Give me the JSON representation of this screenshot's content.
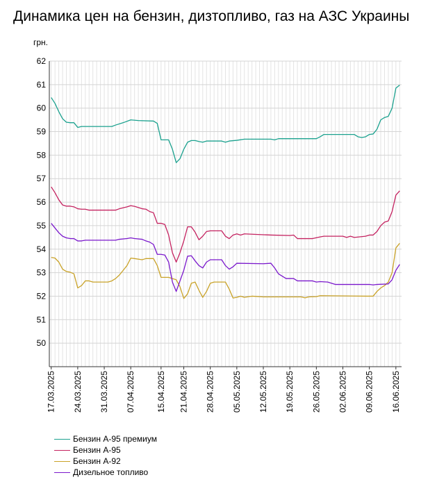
{
  "chart_data": {
    "type": "line",
    "title": "Динамика цен на бензин, дизтопливо, газ на АЗС Украины",
    "ylabel": "грн.",
    "ylim": [
      49,
      62
    ],
    "yticks": [
      50,
      51,
      52,
      53,
      54,
      55,
      56,
      57,
      58,
      59,
      60,
      61,
      62
    ],
    "grid": true,
    "legend_position": "bottom-left",
    "x_start": "2025-03-17",
    "x_end": "2025-06-17",
    "xticks": [
      "17.03.2025",
      "24.03.2025",
      "31.03.2025",
      "07.04.2025",
      "15.04.2025",
      "21.04.2025",
      "28.04.2025",
      "05.05.2025",
      "12.05.2025",
      "19.05.2025",
      "26.05.2025",
      "02.06.2025",
      "09.06.2025",
      "16.06.2025"
    ],
    "xtick_dates": [
      "2025-03-17",
      "2025-03-24",
      "2025-03-31",
      "2025-04-07",
      "2025-04-15",
      "2025-04-21",
      "2025-04-28",
      "2025-05-05",
      "2025-05-12",
      "2025-05-19",
      "2025-05-26",
      "2025-06-02",
      "2025-06-09",
      "2025-06-16"
    ],
    "series": [
      {
        "name": "Бензин А-95 премиум",
        "color": "#1aa18e",
        "points": [
          [
            "2025-03-17",
            60.45
          ],
          [
            "2025-03-18",
            60.2
          ],
          [
            "2025-03-19",
            59.85
          ],
          [
            "2025-03-20",
            59.55
          ],
          [
            "2025-03-21",
            59.4
          ],
          [
            "2025-03-22",
            59.38
          ],
          [
            "2025-03-23",
            59.38
          ],
          [
            "2025-03-24",
            59.18
          ],
          [
            "2025-03-25",
            59.22
          ],
          [
            "2025-03-27",
            59.22
          ],
          [
            "2025-04-02",
            59.22
          ],
          [
            "2025-04-03",
            59.28
          ],
          [
            "2025-04-05",
            59.38
          ],
          [
            "2025-04-07",
            59.5
          ],
          [
            "2025-04-09",
            59.47
          ],
          [
            "2025-04-13",
            59.45
          ],
          [
            "2025-04-14",
            59.35
          ],
          [
            "2025-04-15",
            58.65
          ],
          [
            "2025-04-17",
            58.65
          ],
          [
            "2025-04-18",
            58.25
          ],
          [
            "2025-04-19",
            57.68
          ],
          [
            "2025-04-20",
            57.85
          ],
          [
            "2025-04-21",
            58.25
          ],
          [
            "2025-04-22",
            58.55
          ],
          [
            "2025-04-23",
            58.62
          ],
          [
            "2025-04-24",
            58.62
          ],
          [
            "2025-04-25",
            58.58
          ],
          [
            "2025-04-26",
            58.55
          ],
          [
            "2025-04-27",
            58.6
          ],
          [
            "2025-05-01",
            58.6
          ],
          [
            "2025-05-02",
            58.55
          ],
          [
            "2025-05-03",
            58.6
          ],
          [
            "2025-05-05",
            58.63
          ],
          [
            "2025-05-07",
            58.68
          ],
          [
            "2025-05-14",
            58.68
          ],
          [
            "2025-05-15",
            58.65
          ],
          [
            "2025-05-16",
            58.7
          ],
          [
            "2025-05-26",
            58.7
          ],
          [
            "2025-05-27",
            58.78
          ],
          [
            "2025-05-28",
            58.88
          ],
          [
            "2025-06-05",
            58.88
          ],
          [
            "2025-06-06",
            58.78
          ],
          [
            "2025-06-07",
            58.75
          ],
          [
            "2025-06-08",
            58.78
          ],
          [
            "2025-06-09",
            58.88
          ],
          [
            "2025-06-10",
            58.9
          ],
          [
            "2025-06-11",
            59.1
          ],
          [
            "2025-06-12",
            59.5
          ],
          [
            "2025-06-13",
            59.6
          ],
          [
            "2025-06-14",
            59.65
          ],
          [
            "2025-06-15",
            60.0
          ],
          [
            "2025-06-16",
            60.85
          ],
          [
            "2025-06-17",
            60.98
          ]
        ]
      },
      {
        "name": "Бензин А-95",
        "color": "#c4215f",
        "points": [
          [
            "2025-03-17",
            56.65
          ],
          [
            "2025-03-18",
            56.4
          ],
          [
            "2025-03-19",
            56.1
          ],
          [
            "2025-03-20",
            55.88
          ],
          [
            "2025-03-21",
            55.83
          ],
          [
            "2025-03-22",
            55.83
          ],
          [
            "2025-03-23",
            55.8
          ],
          [
            "2025-03-24",
            55.72
          ],
          [
            "2025-03-25",
            55.7
          ],
          [
            "2025-03-26",
            55.7
          ],
          [
            "2025-03-27",
            55.66
          ],
          [
            "2025-04-03",
            55.66
          ],
          [
            "2025-04-04",
            55.72
          ],
          [
            "2025-04-06",
            55.8
          ],
          [
            "2025-04-07",
            55.85
          ],
          [
            "2025-04-08",
            55.82
          ],
          [
            "2025-04-10",
            55.72
          ],
          [
            "2025-04-11",
            55.7
          ],
          [
            "2025-04-12",
            55.6
          ],
          [
            "2025-04-13",
            55.55
          ],
          [
            "2025-04-14",
            55.1
          ],
          [
            "2025-04-15",
            55.1
          ],
          [
            "2025-04-16",
            55.05
          ],
          [
            "2025-04-17",
            54.6
          ],
          [
            "2025-04-18",
            53.85
          ],
          [
            "2025-04-19",
            53.45
          ],
          [
            "2025-04-20",
            53.85
          ],
          [
            "2025-04-21",
            54.35
          ],
          [
            "2025-04-22",
            54.95
          ],
          [
            "2025-04-23",
            54.95
          ],
          [
            "2025-04-24",
            54.72
          ],
          [
            "2025-04-25",
            54.4
          ],
          [
            "2025-04-26",
            54.55
          ],
          [
            "2025-04-27",
            54.75
          ],
          [
            "2025-04-28",
            54.78
          ],
          [
            "2025-05-01",
            54.78
          ],
          [
            "2025-05-02",
            54.55
          ],
          [
            "2025-05-03",
            54.45
          ],
          [
            "2025-05-04",
            54.6
          ],
          [
            "2025-05-05",
            54.65
          ],
          [
            "2025-05-06",
            54.6
          ],
          [
            "2025-05-07",
            54.65
          ],
          [
            "2025-05-14",
            54.6
          ],
          [
            "2025-05-19",
            54.58
          ],
          [
            "2025-05-20",
            54.6
          ],
          [
            "2025-05-21",
            54.45
          ],
          [
            "2025-05-25",
            54.45
          ],
          [
            "2025-05-27",
            54.52
          ],
          [
            "2025-05-28",
            54.55
          ],
          [
            "2025-06-02",
            54.55
          ],
          [
            "2025-06-03",
            54.5
          ],
          [
            "2025-06-04",
            54.55
          ],
          [
            "2025-06-05",
            54.5
          ],
          [
            "2025-06-08",
            54.55
          ],
          [
            "2025-06-09",
            54.6
          ],
          [
            "2025-06-10",
            54.6
          ],
          [
            "2025-06-11",
            54.75
          ],
          [
            "2025-06-12",
            55.0
          ],
          [
            "2025-06-13",
            55.15
          ],
          [
            "2025-06-14",
            55.2
          ],
          [
            "2025-06-15",
            55.6
          ],
          [
            "2025-06-16",
            56.3
          ],
          [
            "2025-06-17",
            56.48
          ]
        ]
      },
      {
        "name": "Бензин А-92",
        "color": "#c9a227",
        "points": [
          [
            "2025-03-17",
            53.65
          ],
          [
            "2025-03-18",
            53.62
          ],
          [
            "2025-03-19",
            53.45
          ],
          [
            "2025-03-20",
            53.15
          ],
          [
            "2025-03-21",
            53.05
          ],
          [
            "2025-03-22",
            53.02
          ],
          [
            "2025-03-23",
            52.95
          ],
          [
            "2025-03-24",
            52.35
          ],
          [
            "2025-03-25",
            52.45
          ],
          [
            "2025-03-26",
            52.65
          ],
          [
            "2025-03-27",
            52.65
          ],
          [
            "2025-03-28",
            52.6
          ],
          [
            "2025-04-01",
            52.6
          ],
          [
            "2025-04-02",
            52.65
          ],
          [
            "2025-04-03",
            52.75
          ],
          [
            "2025-04-04",
            52.9
          ],
          [
            "2025-04-05",
            53.1
          ],
          [
            "2025-04-06",
            53.3
          ],
          [
            "2025-04-07",
            53.62
          ],
          [
            "2025-04-08",
            53.6
          ],
          [
            "2025-04-10",
            53.55
          ],
          [
            "2025-04-11",
            53.6
          ],
          [
            "2025-04-13",
            53.6
          ],
          [
            "2025-04-14",
            53.3
          ],
          [
            "2025-04-15",
            52.8
          ],
          [
            "2025-04-17",
            52.8
          ],
          [
            "2025-04-18",
            52.75
          ],
          [
            "2025-04-19",
            52.7
          ],
          [
            "2025-04-20",
            52.4
          ],
          [
            "2025-04-21",
            51.9
          ],
          [
            "2025-04-22",
            52.1
          ],
          [
            "2025-04-23",
            52.55
          ],
          [
            "2025-04-24",
            52.6
          ],
          [
            "2025-04-25",
            52.25
          ],
          [
            "2025-04-26",
            51.95
          ],
          [
            "2025-04-27",
            52.2
          ],
          [
            "2025-04-28",
            52.55
          ],
          [
            "2025-04-29",
            52.6
          ],
          [
            "2025-05-02",
            52.6
          ],
          [
            "2025-05-03",
            52.3
          ],
          [
            "2025-05-04",
            51.92
          ],
          [
            "2025-05-05",
            51.95
          ],
          [
            "2025-05-06",
            52.0
          ],
          [
            "2025-05-07",
            51.95
          ],
          [
            "2025-05-09",
            52.0
          ],
          [
            "2025-05-12",
            51.97
          ],
          [
            "2025-05-22",
            51.97
          ],
          [
            "2025-05-23",
            51.93
          ],
          [
            "2025-05-24",
            51.97
          ],
          [
            "2025-05-26",
            51.98
          ],
          [
            "2025-05-27",
            52.02
          ],
          [
            "2025-06-08",
            52.0
          ],
          [
            "2025-06-10",
            52.0
          ],
          [
            "2025-06-11",
            52.2
          ],
          [
            "2025-06-12",
            52.35
          ],
          [
            "2025-06-13",
            52.45
          ],
          [
            "2025-06-14",
            52.6
          ],
          [
            "2025-06-15",
            53.0
          ],
          [
            "2025-06-16",
            54.05
          ],
          [
            "2025-06-17",
            54.25
          ]
        ]
      },
      {
        "name": "Дизельное топливо",
        "color": "#7a17cc",
        "points": [
          [
            "2025-03-17",
            55.1
          ],
          [
            "2025-03-18",
            54.9
          ],
          [
            "2025-03-19",
            54.7
          ],
          [
            "2025-03-20",
            54.55
          ],
          [
            "2025-03-21",
            54.48
          ],
          [
            "2025-03-22",
            54.45
          ],
          [
            "2025-03-23",
            54.45
          ],
          [
            "2025-03-24",
            54.35
          ],
          [
            "2025-03-25",
            54.35
          ],
          [
            "2025-03-26",
            54.38
          ],
          [
            "2025-04-03",
            54.38
          ],
          [
            "2025-04-04",
            54.42
          ],
          [
            "2025-04-06",
            54.45
          ],
          [
            "2025-04-07",
            54.48
          ],
          [
            "2025-04-08",
            54.45
          ],
          [
            "2025-04-10",
            54.42
          ],
          [
            "2025-04-11",
            54.35
          ],
          [
            "2025-04-12",
            54.3
          ],
          [
            "2025-04-13",
            54.2
          ],
          [
            "2025-04-14",
            53.78
          ],
          [
            "2025-04-15",
            53.78
          ],
          [
            "2025-04-16",
            53.75
          ],
          [
            "2025-04-17",
            53.45
          ],
          [
            "2025-04-18",
            52.6
          ],
          [
            "2025-04-19",
            52.2
          ],
          [
            "2025-04-20",
            52.65
          ],
          [
            "2025-04-21",
            53.1
          ],
          [
            "2025-04-22",
            53.7
          ],
          [
            "2025-04-23",
            53.72
          ],
          [
            "2025-04-24",
            53.5
          ],
          [
            "2025-04-25",
            53.3
          ],
          [
            "2025-04-26",
            53.2
          ],
          [
            "2025-04-27",
            53.45
          ],
          [
            "2025-04-28",
            53.55
          ],
          [
            "2025-05-01",
            53.55
          ],
          [
            "2025-05-02",
            53.3
          ],
          [
            "2025-05-03",
            53.15
          ],
          [
            "2025-05-04",
            53.25
          ],
          [
            "2025-05-05",
            53.4
          ],
          [
            "2025-05-12",
            53.38
          ],
          [
            "2025-05-14",
            53.4
          ],
          [
            "2025-05-15",
            53.2
          ],
          [
            "2025-05-16",
            52.95
          ],
          [
            "2025-05-17",
            52.85
          ],
          [
            "2025-05-18",
            52.75
          ],
          [
            "2025-05-20",
            52.75
          ],
          [
            "2025-05-21",
            52.65
          ],
          [
            "2025-05-25",
            52.65
          ],
          [
            "2025-05-26",
            52.6
          ],
          [
            "2025-05-27",
            52.62
          ],
          [
            "2025-05-29",
            52.6
          ],
          [
            "2025-05-30",
            52.55
          ],
          [
            "2025-05-31",
            52.5
          ],
          [
            "2025-06-09",
            52.5
          ],
          [
            "2025-06-10",
            52.48
          ],
          [
            "2025-06-11",
            52.5
          ],
          [
            "2025-06-14",
            52.52
          ],
          [
            "2025-06-15",
            52.7
          ],
          [
            "2025-06-16",
            53.1
          ],
          [
            "2025-06-17",
            53.35
          ]
        ]
      }
    ]
  }
}
